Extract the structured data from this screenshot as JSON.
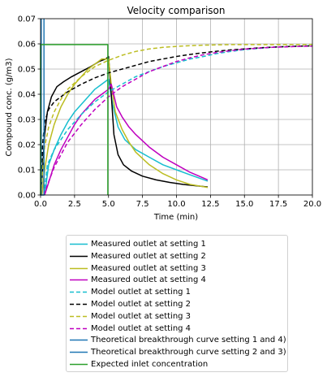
{
  "chart_data": {
    "type": "line",
    "title": "Velocity comparison",
    "xlabel": "Time (min)",
    "ylabel": "Compound conc. (g/m3)",
    "xlim": [
      0,
      20
    ],
    "ylim": [
      0,
      0.07
    ],
    "xticks": [
      "0.0",
      "2.5",
      "5.0",
      "7.5",
      "10.0",
      "12.5",
      "15.0",
      "17.5",
      "20.0"
    ],
    "yticks": [
      "0.00",
      "0.01",
      "0.02",
      "0.03",
      "0.04",
      "0.05",
      "0.06",
      "0.07"
    ],
    "grid": true,
    "legend_position": "below",
    "series": [
      {
        "name": "Measured outlet at setting 1",
        "color": "#17becf",
        "style": "solid",
        "x": [
          0.3,
          0.6,
          1.0,
          1.5,
          2.0,
          2.5,
          3.0,
          3.5,
          4.0,
          4.5,
          5.0,
          5.3,
          5.7,
          6.2,
          7.0,
          8.0,
          9.0,
          10.0,
          11.0,
          12.3
        ],
        "y": [
          0.0,
          0.012,
          0.018,
          0.024,
          0.029,
          0.033,
          0.036,
          0.039,
          0.042,
          0.044,
          0.046,
          0.036,
          0.027,
          0.022,
          0.018,
          0.015,
          0.012,
          0.01,
          0.008,
          0.0055
        ]
      },
      {
        "name": "Measured outlet at setting 2",
        "color": "#000000",
        "style": "solid",
        "x": [
          0.0,
          0.1,
          0.3,
          0.5,
          0.8,
          1.2,
          1.7,
          2.3,
          3.0,
          3.7,
          4.3,
          4.8,
          5.0,
          5.2,
          5.4,
          5.7,
          6.1,
          6.7,
          7.5,
          8.5,
          9.5,
          10.5,
          12.3
        ],
        "y": [
          0.0,
          0.006,
          0.024,
          0.033,
          0.039,
          0.043,
          0.045,
          0.047,
          0.049,
          0.051,
          0.053,
          0.054,
          0.055,
          0.04,
          0.024,
          0.016,
          0.012,
          0.0095,
          0.0075,
          0.006,
          0.005,
          0.0042,
          0.0032
        ]
      },
      {
        "name": "Measured outlet at setting 3",
        "color": "#bcbd22",
        "style": "solid",
        "x": [
          0.1,
          0.3,
          0.6,
          1.0,
          1.5,
          2.0,
          2.5,
          3.0,
          3.5,
          4.0,
          4.5,
          5.0,
          5.2,
          5.5,
          6.0,
          6.5,
          7.0,
          8.0,
          9.0,
          10.0,
          11.0,
          12.3
        ],
        "y": [
          0.0,
          0.01,
          0.02,
          0.028,
          0.035,
          0.04,
          0.044,
          0.047,
          0.05,
          0.052,
          0.054,
          0.054,
          0.044,
          0.033,
          0.026,
          0.021,
          0.017,
          0.012,
          0.0085,
          0.006,
          0.0042,
          0.003
        ]
      },
      {
        "name": "Measured outlet at setting 4",
        "color": "#bf00bf",
        "style": "solid",
        "x": [
          0.3,
          0.6,
          1.0,
          1.5,
          2.0,
          2.5,
          3.0,
          3.5,
          4.0,
          4.5,
          5.0,
          5.2,
          5.6,
          6.0,
          6.5,
          7.0,
          8.0,
          9.0,
          10.0,
          11.0,
          12.3
        ],
        "y": [
          0.0,
          0.005,
          0.012,
          0.018,
          0.023,
          0.028,
          0.032,
          0.035,
          0.038,
          0.04,
          0.042,
          0.044,
          0.035,
          0.031,
          0.027,
          0.024,
          0.019,
          0.015,
          0.012,
          0.009,
          0.006
        ]
      },
      {
        "name": "Model outlet at setting 1",
        "color": "#17becf",
        "style": "dashed",
        "x": [
          0.25,
          0.5,
          1,
          2,
          3,
          4,
          5,
          6,
          7,
          8,
          9,
          10,
          11,
          12,
          13,
          14,
          15,
          16,
          17,
          18,
          19,
          20
        ],
        "y": [
          0.0,
          0.012,
          0.018,
          0.026,
          0.032,
          0.037,
          0.041,
          0.044,
          0.047,
          0.049,
          0.051,
          0.0525,
          0.054,
          0.055,
          0.0562,
          0.057,
          0.0577,
          0.0582,
          0.0586,
          0.0589,
          0.0591,
          0.0593
        ]
      },
      {
        "name": "Model outlet at setting 2",
        "color": "#000000",
        "style": "dashed",
        "x": [
          0.05,
          0.15,
          0.3,
          0.6,
          1,
          1.5,
          2,
          3,
          4,
          5,
          6,
          7,
          8,
          9,
          10,
          11,
          12,
          13,
          14,
          15,
          16,
          17,
          18,
          19,
          20
        ],
        "y": [
          0.0,
          0.02,
          0.029,
          0.034,
          0.037,
          0.039,
          0.041,
          0.044,
          0.0465,
          0.0485,
          0.05,
          0.0515,
          0.053,
          0.054,
          0.055,
          0.0558,
          0.0565,
          0.0571,
          0.0576,
          0.058,
          0.0584,
          0.0587,
          0.0589,
          0.0591,
          0.0592
        ]
      },
      {
        "name": "Model outlet at setting 3",
        "color": "#bcbd22",
        "style": "dashed",
        "x": [
          0.05,
          0.15,
          0.3,
          0.6,
          1,
          1.5,
          2,
          3,
          4,
          5,
          6,
          7,
          8,
          9,
          10,
          11,
          12,
          13,
          14,
          15,
          16,
          17,
          18,
          19,
          20
        ],
        "y": [
          0.0,
          0.01,
          0.019,
          0.027,
          0.033,
          0.038,
          0.042,
          0.047,
          0.051,
          0.0535,
          0.0555,
          0.057,
          0.058,
          0.0586,
          0.059,
          0.0593,
          0.0595,
          0.0596,
          0.0597,
          0.0597,
          0.0597,
          0.0597,
          0.0597,
          0.0597,
          0.0597
        ]
      },
      {
        "name": "Model outlet at setting 4",
        "color": "#bf00bf",
        "style": "dashed",
        "x": [
          0.25,
          0.5,
          1,
          2,
          3,
          4,
          5,
          6,
          7,
          8,
          9,
          10,
          11,
          12,
          13,
          14,
          15,
          16,
          17,
          18,
          19,
          20
        ],
        "y": [
          0.0,
          0.004,
          0.011,
          0.021,
          0.028,
          0.034,
          0.039,
          0.043,
          0.046,
          0.049,
          0.051,
          0.053,
          0.0545,
          0.0557,
          0.0566,
          0.0573,
          0.0579,
          0.0583,
          0.0586,
          0.0588,
          0.059,
          0.0591
        ]
      },
      {
        "name": "Theoretical breakthrough curve setting 1 and 4)",
        "color": "#1f77b4",
        "style": "solid",
        "x": [
          0,
          0.25,
          0.25,
          0.25
        ],
        "y": [
          0,
          0,
          0.07,
          0.07
        ]
      },
      {
        "name": "Theoretical breakthrough curve setting 2 and 3)",
        "color": "#1f77b4",
        "style": "solid",
        "x": [
          0,
          0.05,
          0.05,
          0.05
        ],
        "y": [
          0,
          0,
          0.07,
          0.07
        ]
      },
      {
        "name": "Expected inlet concentration",
        "color": "#2ca02c",
        "style": "solid",
        "x": [
          0,
          0,
          4.95,
          4.95
        ],
        "y": [
          0,
          0.0597,
          0.0597,
          0.0
        ]
      }
    ]
  }
}
